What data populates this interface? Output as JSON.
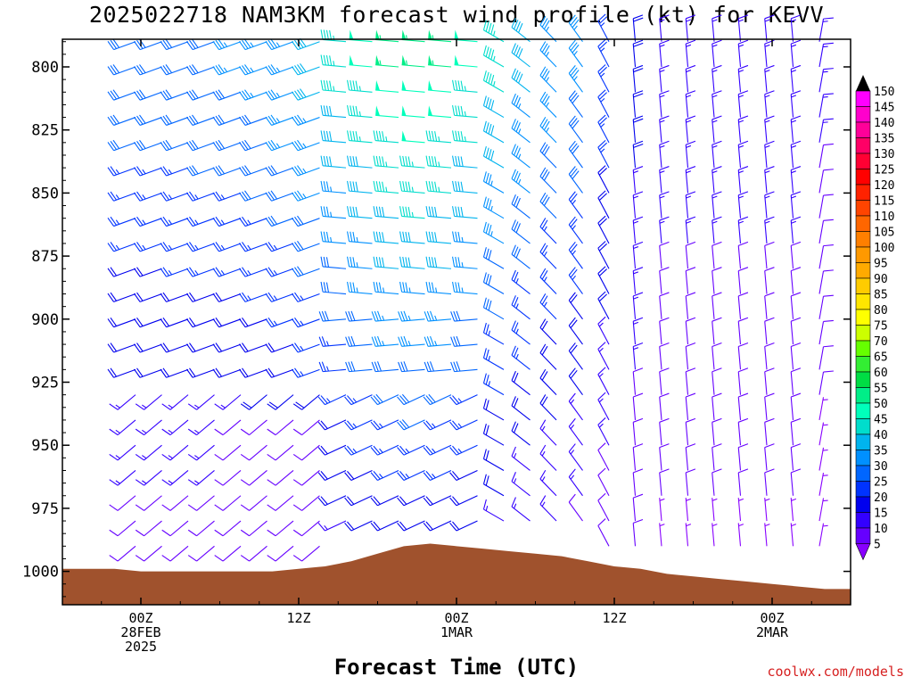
{
  "chart_data": {
    "type": "wind-barb-profile",
    "title": "2025022718 NAM3KM forecast wind profile (kt) for KEVV",
    "xlabel": "Forecast Time (UTC)",
    "ylabel": "",
    "y_axis": {
      "scale": "pressure",
      "ylim": [
        1012,
        790
      ],
      "ticks": [
        800,
        825,
        850,
        875,
        900,
        925,
        950,
        975,
        1000
      ]
    },
    "x_axis": {
      "ticks": [
        {
          "line1": "00Z",
          "line2": "28FEB",
          "line3": "2025"
        },
        {
          "line1": "12Z",
          "line2": "",
          "line3": ""
        },
        {
          "line1": "00Z",
          "line2": "1MAR",
          "line3": ""
        },
        {
          "line1": "12Z",
          "line2": "",
          "line3": ""
        },
        {
          "line1": "00Z",
          "line2": "2MAR",
          "line3": ""
        }
      ]
    },
    "wind_grid": {
      "forecast_hours": [
        0,
        2,
        4,
        6,
        8,
        10,
        12,
        14,
        16,
        18,
        20,
        22,
        24,
        26,
        28,
        30,
        32,
        34,
        36,
        38,
        40,
        42,
        44,
        46,
        48,
        50,
        52,
        54,
        56,
        58
      ],
      "pressure_levels": [
        790,
        800,
        810,
        820,
        830,
        840,
        850,
        860,
        870,
        880,
        890,
        900,
        910,
        920,
        930,
        940,
        950,
        960,
        970,
        980,
        990,
        1000
      ],
      "features": [
        {
          "forecast_hour": 0,
          "upper_speed_kt": 30,
          "lower_speed_kt": 25,
          "direction": "WSW"
        },
        {
          "forecast_hour": 12,
          "upper_speed_kt": 35,
          "lower_speed_kt": 10,
          "direction": "WSW"
        },
        {
          "forecast_hour": 22,
          "upper_speed_kt": 50,
          "lower_speed_kt": 30,
          "direction": "W"
        },
        {
          "forecast_hour": 30,
          "upper_speed_kt": 35,
          "lower_speed_kt": 20,
          "direction": "NW"
        },
        {
          "forecast_hour": 40,
          "upper_speed_kt": 20,
          "lower_speed_kt": 10,
          "direction": "N"
        },
        {
          "forecast_hour": 56,
          "upper_speed_kt": 15,
          "lower_speed_kt": 5,
          "direction": "NNE"
        }
      ]
    },
    "surface_pressure": {
      "forecast_hours": [
        -6,
        -4,
        -2,
        0,
        2,
        4,
        6,
        8,
        10,
        12,
        14,
        16,
        18,
        20,
        22,
        24,
        26,
        28,
        30,
        32,
        34,
        36,
        38,
        40,
        42,
        44,
        46,
        48,
        50,
        52,
        54,
        56,
        58,
        59
      ],
      "pressure_hPa": [
        999,
        999,
        999,
        1000,
        1000,
        1000,
        1000,
        1000,
        1000,
        999,
        998,
        996,
        993,
        990,
        989,
        990,
        991,
        992,
        993,
        994,
        996,
        998,
        999,
        1001,
        1002,
        1003,
        1004,
        1005,
        1006,
        1007,
        1007,
        1008,
        1008,
        1008
      ]
    },
    "colorbar": {
      "labels": [
        "150",
        "145",
        "140",
        "135",
        "130",
        "125",
        "120",
        "115",
        "110",
        "105",
        "100",
        "95",
        "90",
        "85",
        "80",
        "75",
        "70",
        "65",
        "60",
        "55",
        "50",
        "45",
        "40",
        "35",
        "30",
        "25",
        "20",
        "15",
        "10",
        "5"
      ],
      "colors": [
        "#ff00ff",
        "#ff00cc",
        "#ff0099",
        "#ff0066",
        "#ff0033",
        "#ff0000",
        "#ff2200",
        "#ff4400",
        "#ff6600",
        "#ff7f00",
        "#ff9900",
        "#ffaa00",
        "#ffcc00",
        "#ffe600",
        "#ffff00",
        "#ccff00",
        "#66ff00",
        "#33ee33",
        "#00dd44",
        "#00ee88",
        "#00ffbb",
        "#00ddcc",
        "#00b4ee",
        "#0090ff",
        "#0066ff",
        "#0033ff",
        "#0000ee",
        "#3300ff",
        "#6600ff",
        "#8800ff"
      ]
    },
    "colors": {
      "terrain": "#a0522d",
      "credit": "#d62020"
    }
  },
  "credit": "coolwx.com/models"
}
